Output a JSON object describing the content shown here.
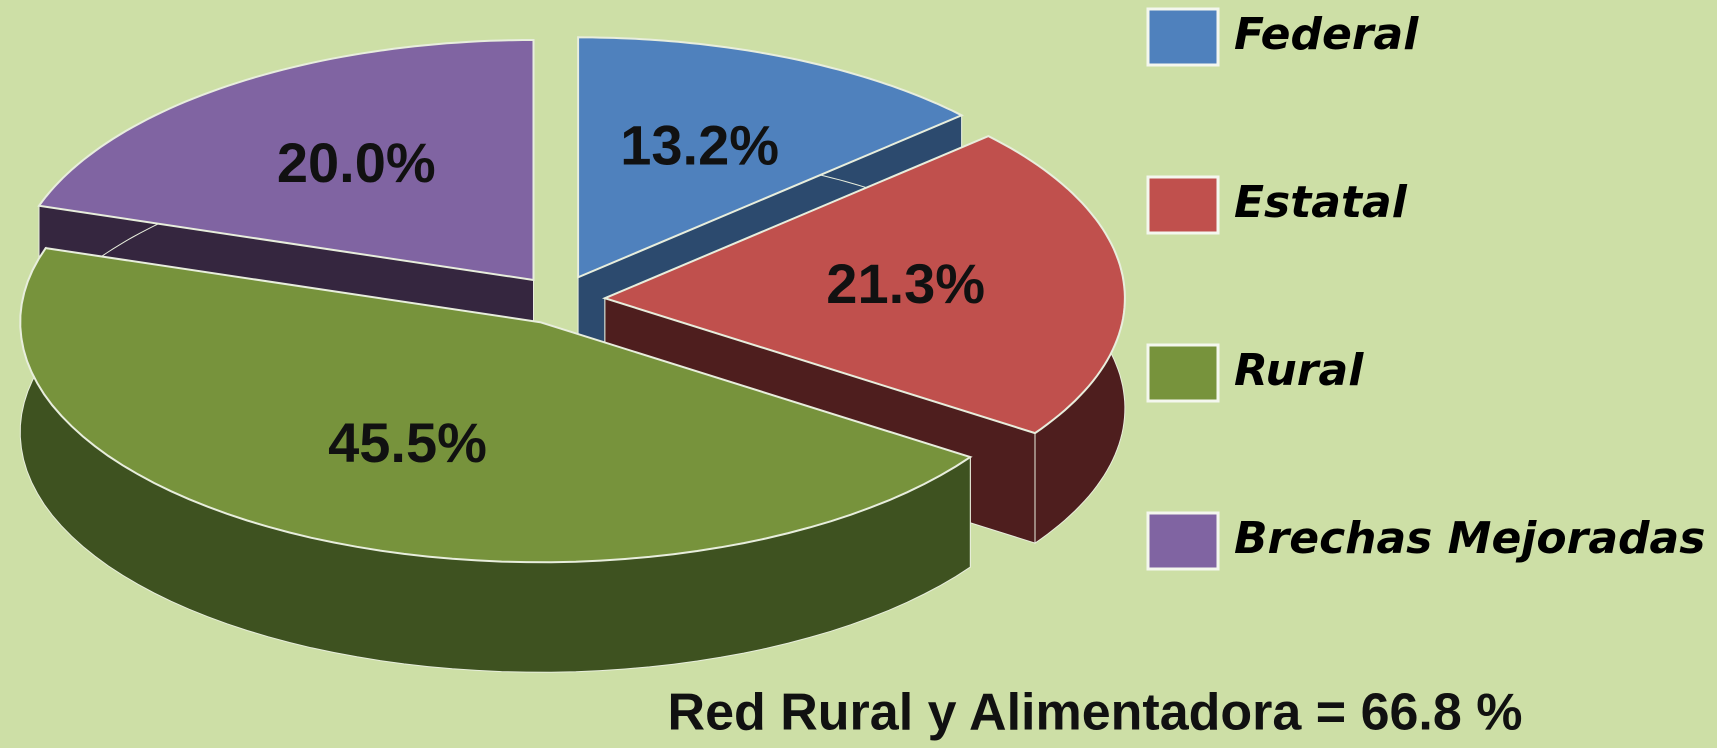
{
  "chart_data": {
    "type": "pie3d",
    "categories": [
      "Federal",
      "Estatal",
      "Rural",
      "Brechas Mejoradas"
    ],
    "values": [
      13.2,
      21.3,
      45.5,
      20.0
    ],
    "value_labels": [
      "13.2%",
      "21.3%",
      "45.5%",
      "20.0%"
    ],
    "colors": [
      "#4f81bd",
      "#c0504d",
      "#77933c",
      "#8064a2"
    ],
    "side_colors": [
      "#2c4a6e",
      "#4e1e1e",
      "#3e5220",
      "#35263f"
    ],
    "annotation": "Red Rural y Alimentadora = 66.8 %",
    "legend": "right"
  }
}
